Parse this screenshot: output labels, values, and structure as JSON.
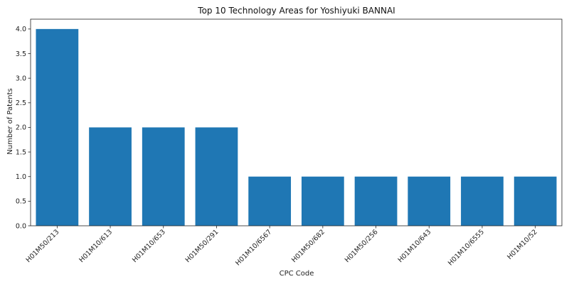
{
  "chart_data": {
    "type": "bar",
    "title": "Top 10 Technology Areas for Yoshiyuki BANNAI",
    "xlabel": "CPC Code",
    "ylabel": "Number of Patents",
    "categories": [
      "H01M50/213",
      "H01M10/613",
      "H01M10/653",
      "H01M50/291",
      "H01M10/6567",
      "H01M50/682",
      "H01M50/256",
      "H01M10/643",
      "H01M10/6555",
      "H01M10/52"
    ],
    "values": [
      4,
      2,
      2,
      2,
      1,
      1,
      1,
      1,
      1,
      1
    ],
    "ylim": [
      0,
      4.2
    ],
    "yticks": [
      "0.0",
      "0.5",
      "1.0",
      "1.5",
      "2.0",
      "2.5",
      "3.0",
      "3.5",
      "4.0"
    ],
    "bar_color": "#1f77b4",
    "grid": false,
    "legend": "none"
  }
}
